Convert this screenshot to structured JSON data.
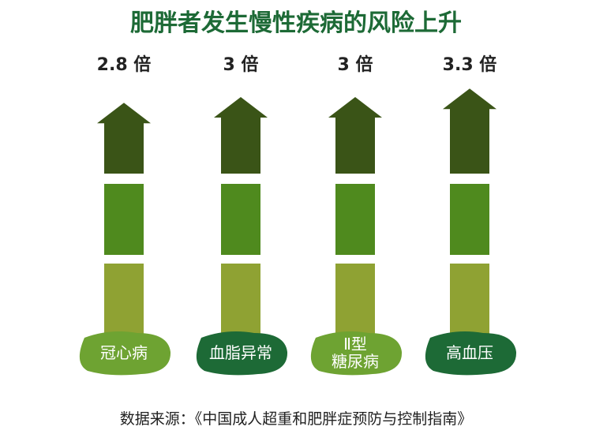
{
  "chart_data": {
    "type": "arrow-bar",
    "title": "肥胖者发生慢性疾病的风险上升",
    "categories": [
      "冠心病",
      "血脂异常",
      "Ⅱ型\n糖尿病",
      "高血压"
    ],
    "values": [
      2.8,
      3,
      3,
      3.3
    ],
    "value_labels": [
      "2.8 倍",
      "3 倍",
      "3 倍",
      "3.3 倍"
    ],
    "segment_colors": [
      "#3a5417",
      "#4f8a1e",
      "#8fa233"
    ],
    "label_colors": [
      "#6ea332",
      "#1d6a36",
      "#6ea332",
      "#1d6a36"
    ],
    "source": "数据来源：《中国成人超重和肥胖症预防与控制指南》"
  }
}
